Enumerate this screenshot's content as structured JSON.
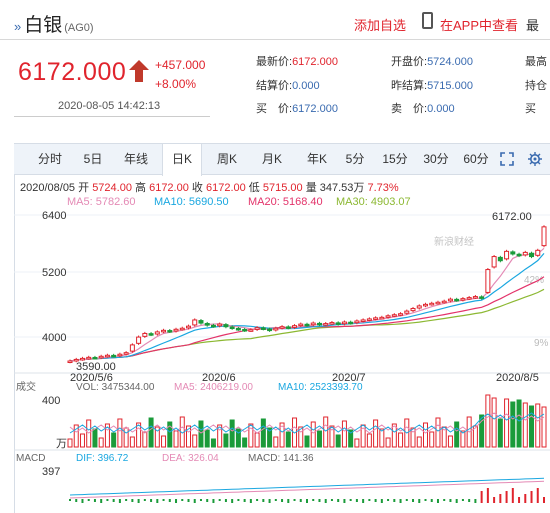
{
  "header": {
    "mark": "»",
    "title": "白银",
    "code": "(AG0)",
    "add_favorite": "添加自选",
    "app_link": "在APP中查看",
    "more": "最"
  },
  "quote": {
    "price": "6172.000",
    "change": "+457.000",
    "change_pct": "+8.00%",
    "time": "2020-08-05 14:42:13"
  },
  "stats": {
    "latest_label": "最新价:",
    "latest": "6172.000",
    "settle_label": "结算价:",
    "settle": "0.000",
    "buy_label": "买　价:",
    "buy": "6172.000",
    "open_label": "开盘价:",
    "open": "5724.000",
    "prev_settle_label": "昨结算:",
    "prev_settle": "5715.000",
    "sell_label": "卖　价:",
    "sell": "0.000",
    "col4_row1": "最高",
    "col4_row2": "持仓",
    "col4_row3": "买"
  },
  "tabs": [
    "分时",
    "5日",
    "年线",
    "日K",
    "周K",
    "月K",
    "年K",
    "5分",
    "15分",
    "30分",
    "60分"
  ],
  "active_tab": "日K",
  "ohlc_line": {
    "date": "2020/08/05",
    "open_label": "开",
    "open": "5724.00",
    "high_label": "高",
    "high": "6172.00",
    "close_label": "收",
    "close": "6172.00",
    "low_label": "低",
    "low": "5715.00",
    "vol_label": "量",
    "vol": "347.53万",
    "pct": "7.73%"
  },
  "ma_line": {
    "ma5": "MA5: 5782.60",
    "ma10": "MA10: 5690.50",
    "ma20": "MA20: 5168.40",
    "ma30": "MA30: 4903.07"
  },
  "chart_labels": {
    "y_ticks": [
      "6400",
      "5200",
      "4000"
    ],
    "pct_ticks": [
      "42%",
      "9%"
    ],
    "low_marker": "3590.00",
    "high_marker": "6172.00",
    "watermark": "新浪财经",
    "x_ticks": [
      "2020/5/6",
      "2020/6",
      "2020/7",
      "2020/8/5"
    ]
  },
  "volume": {
    "label": "成交",
    "vol": "VOL: 3475344.00",
    "ma5": "MA5: 2406219.00",
    "ma10": "MA10: 2523393.70",
    "top_tick": "400",
    "unit": "万"
  },
  "macd": {
    "label": "MACD",
    "dif": "DIF: 396.72",
    "dea": "DEA: 326.04",
    "macd": "MACD: 141.36",
    "top_tick": "397"
  },
  "colors": {
    "up": "#e0242d",
    "down": "#1a9b3a",
    "ma5": "#e48ab5",
    "ma10": "#1aa7e0",
    "ma20": "#e3336a",
    "ma30": "#8cb832",
    "blue_text": "#3a6bb0"
  },
  "chart_data": {
    "type": "candlestick",
    "x_range": [
      "2020/5/6",
      "2020/8/5"
    ],
    "y_range": [
      3590,
      6400
    ],
    "closes": [
      3590,
      3620,
      3640,
      3660,
      3650,
      3680,
      3700,
      3690,
      3720,
      3750,
      3900,
      4050,
      4120,
      4100,
      4150,
      4180,
      4160,
      4200,
      4220,
      4260,
      4380,
      4320,
      4280,
      4260,
      4300,
      4250,
      4220,
      4200,
      4180,
      4190,
      4230,
      4210,
      4180,
      4220,
      4250,
      4230,
      4270,
      4300,
      4280,
      4320,
      4290,
      4310,
      4330,
      4300,
      4340,
      4320,
      4360,
      4380,
      4400,
      4420,
      4430,
      4460,
      4480,
      4500,
      4550,
      4600,
      4650,
      4680,
      4700,
      4720,
      4740,
      4780,
      4760,
      4790,
      4810,
      4830,
      4800,
      5350,
      5600,
      5520,
      5700,
      5650,
      5620,
      5680,
      5600,
      5720,
      6172
    ]
  }
}
